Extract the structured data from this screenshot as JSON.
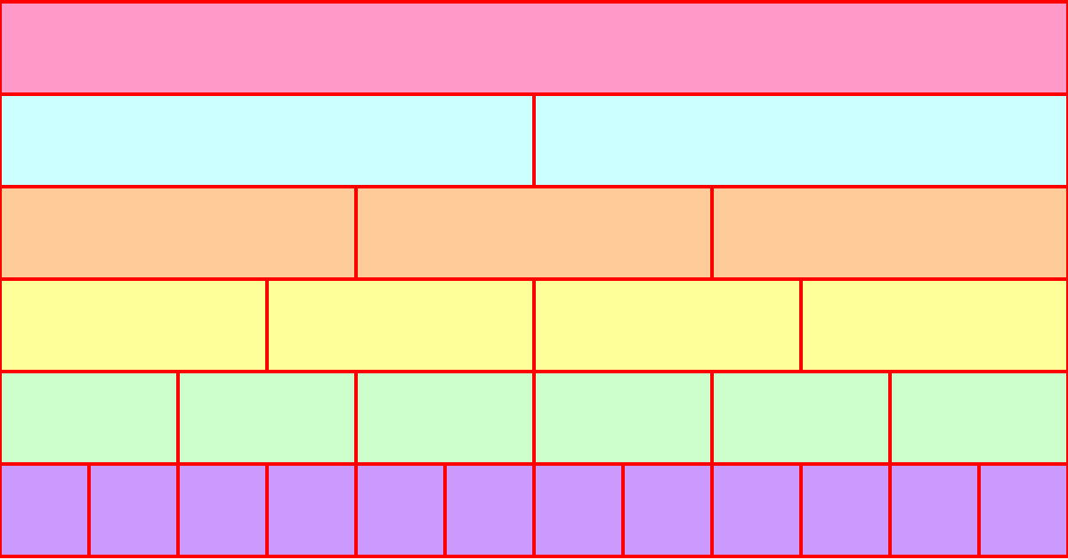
{
  "rows": [
    {
      "divisions": 1,
      "fill": "#FF99C8"
    },
    {
      "divisions": 2,
      "fill": "#CCFFFF"
    },
    {
      "divisions": 3,
      "fill": "#FFCC99"
    },
    {
      "divisions": 4,
      "fill": "#FFFF99"
    },
    {
      "divisions": 6,
      "fill": "#CCFFCC"
    },
    {
      "divisions": 12,
      "fill": "#CC99FF"
    }
  ],
  "stroke": "#FF0000"
}
